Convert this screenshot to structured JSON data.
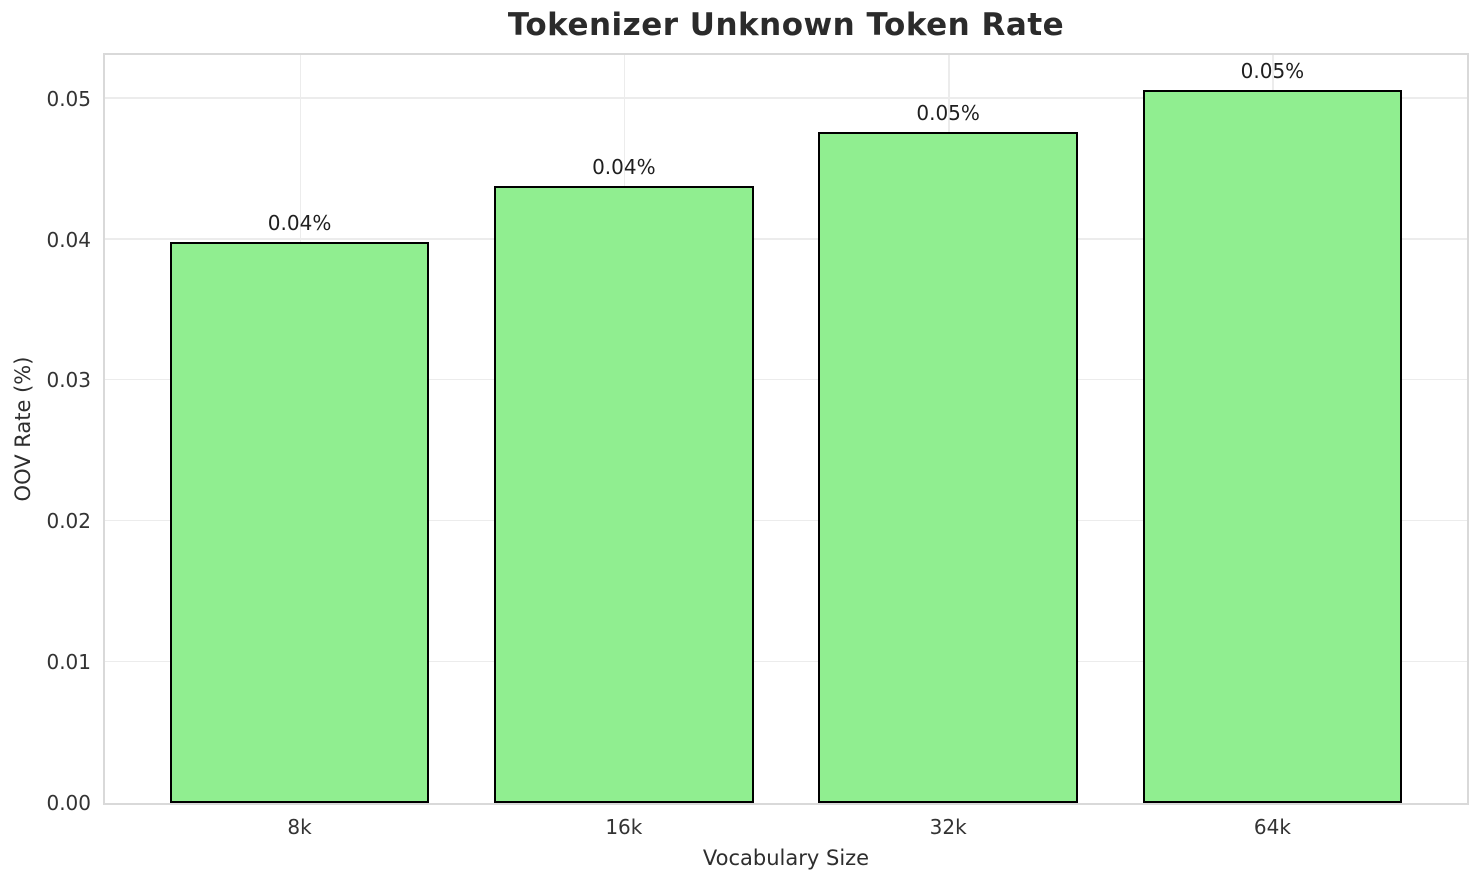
{
  "chart_data": {
    "type": "bar",
    "title": "Tokenizer Unknown Token Rate",
    "xlabel": "Vocabulary Size",
    "ylabel": "OOV Rate (%)",
    "categories": [
      "8k",
      "16k",
      "32k",
      "64k"
    ],
    "values": [
      0.0398,
      0.0438,
      0.0476,
      0.0506
    ],
    "bar_labels": [
      "0.04%",
      "0.04%",
      "0.05%",
      "0.05%"
    ],
    "y_ticks": [
      "0.00",
      "0.01",
      "0.02",
      "0.03",
      "0.04",
      "0.05"
    ],
    "ylim": [
      0,
      0.0531
    ],
    "grid": "both",
    "legend": "none",
    "colors": {
      "bar_fill": "#90EE90",
      "bar_edge": "#000000",
      "grid_line": "#ececec",
      "spine": "#d9d9d9",
      "title_text": "#2b2b2b",
      "tick_text": "#333333",
      "bar_label_text": "#1f1f1f",
      "background": "#ffffff"
    }
  }
}
